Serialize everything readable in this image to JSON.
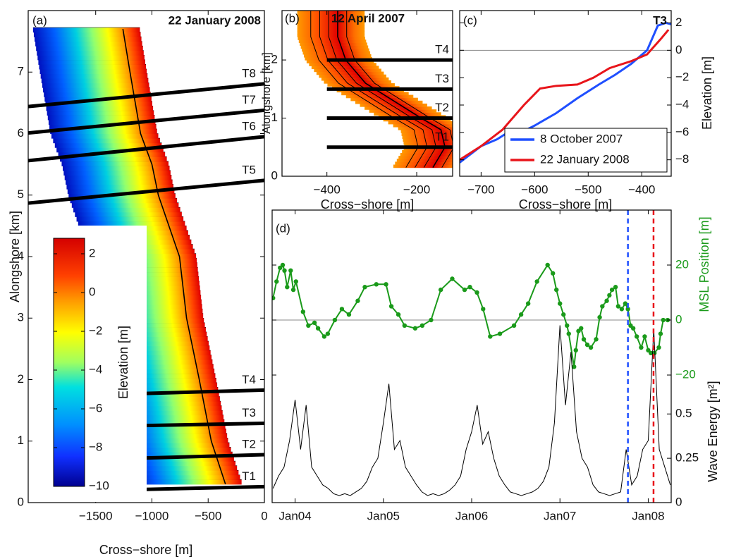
{
  "chart_data": [
    {
      "type": "surface",
      "label": "(a)",
      "title": "22 January 2008",
      "xlabel": "Cross−shore [m]",
      "ylabel": "Alongshore [km]",
      "xlim": [
        -2100,
        0
      ],
      "xticks": [
        {
          "value": -1500,
          "label": "−1500"
        },
        {
          "value": -1000,
          "label": "−1000"
        },
        {
          "value": -500,
          "label": "−500"
        },
        0
      ],
      "ylim": [
        0,
        8
      ],
      "yticks": [
        0,
        1,
        2,
        3,
        4,
        5,
        6,
        7
      ],
      "shoreline": {
        "x": [
          -346,
          -472,
          -579,
          -692,
          -755,
          -943,
          -1000,
          -1101,
          -1195,
          -1258
        ],
        "y": [
          0.3,
          1,
          2,
          3,
          4,
          5,
          5.5,
          6,
          7,
          7.7
        ]
      },
      "transects": [
        {
          "label": "T8",
          "x": [
            -2100,
            0
          ],
          "y": [
            6.44,
            6.81
          ]
        },
        {
          "label": "T7",
          "x": [
            -2100,
            0
          ],
          "y": [
            6.01,
            6.38
          ]
        },
        {
          "label": "T6",
          "x": [
            -2100,
            0
          ],
          "y": [
            5.56,
            5.95
          ]
        },
        {
          "label": "T5",
          "x": [
            -2100,
            0
          ],
          "y": [
            4.87,
            5.24
          ]
        },
        {
          "label": "T4",
          "x": [
            -1164,
            0
          ],
          "y": [
            1.77,
            1.83
          ]
        },
        {
          "label": "T3",
          "x": [
            -1164,
            0
          ],
          "y": [
            1.25,
            1.29
          ]
        },
        {
          "label": "T2",
          "x": [
            -1164,
            0
          ],
          "y": [
            0.72,
            0.78
          ]
        },
        {
          "label": "T1",
          "x": [
            -1164,
            0
          ],
          "y": [
            0.21,
            0.26
          ]
        }
      ],
      "colorbar": {
        "label": "Elevation [m]",
        "clim": [
          -10,
          2.8
        ],
        "ticks": [
          2,
          0,
          {
            "value": -2,
            "label": "−2"
          },
          {
            "value": -4,
            "label": "−4"
          },
          {
            "value": -6,
            "label": "−6"
          },
          {
            "value": -8,
            "label": "−8"
          },
          {
            "value": -10,
            "label": "−10"
          }
        ]
      }
    },
    {
      "type": "surface",
      "label": "(b)",
      "title": "12 April 2007",
      "xlabel": "Cross−shore [m]",
      "ylabel": "Alongshore [km]",
      "xlim": [
        -500,
        -120
      ],
      "xticks": [
        {
          "value": -400,
          "label": "−400"
        },
        {
          "value": -200,
          "label": "−200"
        }
      ],
      "ylim": [
        0,
        2.85
      ],
      "yticks": [
        0,
        1,
        2
      ],
      "shoreline": {
        "x": [
          -164,
          -137,
          -146,
          -190,
          -252,
          -314,
          -358,
          -376,
          -376
        ],
        "y": [
          0.15,
          0.5,
          0.8,
          1.0,
          1.3,
          1.6,
          2.0,
          2.4,
          2.85
        ]
      },
      "transects": [
        {
          "label": "T4",
          "x": [
            -400,
            -120
          ],
          "y": [
            2,
            2
          ]
        },
        {
          "label": "T3",
          "x": [
            -400,
            -120
          ],
          "y": [
            1.5,
            1.5
          ]
        },
        {
          "label": "T2",
          "x": [
            -400,
            -120
          ],
          "y": [
            1,
            1
          ]
        },
        {
          "label": "T1",
          "x": [
            -400,
            -120
          ],
          "y": [
            0.5,
            0.5
          ]
        }
      ]
    },
    {
      "type": "line",
      "label": "(c)",
      "title": "T3",
      "xlabel": "Cross−shore [m]",
      "ylabel": "Elevation [m]",
      "xlim": [
        -740,
        -345
      ],
      "xticks": [
        {
          "value": -700,
          "label": "−700"
        },
        {
          "value": -600,
          "label": "−600"
        },
        {
          "value": -500,
          "label": "−500"
        },
        {
          "value": -400,
          "label": "−400"
        }
      ],
      "ylim": [
        -9.2,
        2.9
      ],
      "yticks": [
        2,
        0,
        {
          "value": -2,
          "label": "−2"
        },
        {
          "value": -4,
          "label": "−4"
        },
        {
          "value": -6,
          "label": "−6"
        },
        {
          "value": -8,
          "label": "−8"
        }
      ],
      "zero_line": true,
      "legend": "lower right",
      "series": [
        {
          "name": "8 October 2007",
          "color": "#1f4fff",
          "x": [
            -740,
            -700,
            -670,
            -650,
            -640,
            -600,
            -560,
            -520,
            -480,
            -450,
            -420,
            -390,
            -370,
            -355,
            -345
          ],
          "values": [
            -8.2,
            -7,
            -6.5,
            -6,
            -6.3,
            -5.5,
            -4.6,
            -3.5,
            -2.5,
            -1.8,
            -1,
            0,
            1.8,
            2,
            1.9
          ]
        },
        {
          "name": "22 January 2008",
          "color": "#e8151b",
          "x": [
            -740,
            -700,
            -660,
            -620,
            -590,
            -560,
            -520,
            -490,
            -460,
            -420,
            -390,
            -365,
            -350
          ],
          "values": [
            -8,
            -7,
            -5.8,
            -4,
            -2.8,
            -2.6,
            -2.5,
            -2,
            -1.3,
            -0.8,
            -0.3,
            0.8,
            1.5
          ]
        }
      ]
    },
    {
      "type": "line",
      "label": "(d)",
      "xlim": [
        2003.74,
        2008.26
      ],
      "xticks": [
        {
          "value": 2004,
          "label": "Jan04"
        },
        {
          "value": 2005,
          "label": "Jan05"
        },
        {
          "value": 2006,
          "label": "Jan06"
        },
        {
          "value": 2007,
          "label": "Jan07"
        },
        {
          "value": 2008,
          "label": "Jan08"
        }
      ],
      "ylabel": "MSL Position [m]",
      "ylim": [
        -66.4,
        40
      ],
      "yticks": [
        {
          "value": -20,
          "label": "−20"
        },
        0,
        20
      ],
      "y2label": "Wave Energy [m²]",
      "y2lim": [
        0,
        1.65
      ],
      "y2ticks": [
        0,
        0.25,
        0.5
      ],
      "zero_line": true,
      "vlines": [
        {
          "x": 2007.77,
          "color": "#1f4fff"
        },
        {
          "x": 2008.06,
          "color": "#e8151b"
        }
      ],
      "series": [
        {
          "color": "#1a9a1a",
          "marker": true,
          "x": [
            2003.75,
            2003.79,
            2003.83,
            2003.86,
            2003.88,
            2003.91,
            2003.95,
            2003.98,
            2004.01,
            2004.09,
            2004.15,
            2004.22,
            2004.26,
            2004.33,
            2004.37,
            2004.45,
            2004.53,
            2004.61,
            2004.71,
            2004.79,
            2004.92,
            2005.03,
            2005.09,
            2005.17,
            2005.24,
            2005.36,
            2005.44,
            2005.54,
            2005.65,
            2005.78,
            2005.92,
            2005.98,
            2006.06,
            2006.13,
            2006.21,
            2006.32,
            2006.48,
            2006.56,
            2006.64,
            2006.74,
            2006.86,
            2006.92,
            2006.96,
            2007.0,
            2007.04,
            2007.08,
            2007.1,
            2007.16,
            2007.18,
            2007.21,
            2007.24,
            2007.27,
            2007.31,
            2007.35,
            2007.41,
            2007.45,
            2007.48,
            2007.53,
            2007.56,
            2007.59,
            2007.63,
            2007.66,
            2007.7,
            2007.74,
            2007.77,
            2007.8,
            2007.83,
            2007.87,
            2007.92,
            2007.96,
            2008.0,
            2008.03,
            2008.07,
            2008.12,
            2008.14,
            2008.17,
            2008.22
          ],
          "values": [
            8,
            14,
            19,
            20,
            18,
            12,
            18,
            11,
            14,
            3,
            -2,
            -1,
            -3,
            -6,
            -5,
            0,
            4,
            2,
            7,
            12,
            13,
            13,
            5,
            2,
            -2,
            -3,
            -2,
            0,
            11,
            15,
            11,
            12,
            10,
            4,
            -6,
            -5,
            -2,
            2,
            6,
            14,
            20,
            17,
            11,
            6,
            2,
            -2,
            -5,
            -17,
            -11,
            -4,
            -3,
            -7,
            -9,
            -10,
            -7,
            1,
            5,
            7,
            9,
            11,
            12,
            5,
            4,
            6,
            4,
            -2,
            -3,
            -6,
            -10,
            -6,
            -11,
            -12,
            -12,
            -10,
            -5,
            0,
            0
          ]
        },
        {
          "color": "#000000",
          "axis": "y2",
          "x": [
            2003.75,
            2003.8125,
            2003.875,
            2003.9375,
            2004,
            2004.0625,
            2004.125,
            2004.1875,
            2004.25,
            2004.3125,
            2004.375,
            2004.4375,
            2004.5,
            2004.5625,
            2004.625,
            2004.6875,
            2004.75,
            2004.8125,
            2004.875,
            2004.9375,
            2005,
            2005.0625,
            2005.125,
            2005.1875,
            2005.25,
            2005.3125,
            2005.375,
            2005.4375,
            2005.5,
            2005.5625,
            2005.625,
            2005.6875,
            2005.75,
            2005.8125,
            2005.875,
            2005.9375,
            2006,
            2006.0625,
            2006.125,
            2006.1875,
            2006.25,
            2006.3125,
            2006.375,
            2006.4375,
            2006.5,
            2006.5625,
            2006.625,
            2006.6875,
            2006.75,
            2006.8125,
            2006.875,
            2006.9375,
            2007,
            2007.0625,
            2007.125,
            2007.1875,
            2007.25,
            2007.3125,
            2007.375,
            2007.4375,
            2007.5,
            2007.5625,
            2007.625,
            2007.6875,
            2007.75,
            2007.8125,
            2007.875,
            2007.9375,
            2008,
            2008.0625,
            2008.125,
            2008.1875,
            2008.25
          ],
          "values": [
            0.08,
            0.15,
            0.2,
            0.35,
            0.58,
            0.3,
            0.55,
            0.2,
            0.15,
            0.1,
            0.08,
            0.05,
            0.04,
            0.05,
            0.04,
            0.06,
            0.08,
            0.12,
            0.2,
            0.25,
            0.45,
            0.67,
            0.3,
            0.35,
            0.2,
            0.15,
            0.1,
            0.06,
            0.04,
            0.05,
            0.04,
            0.05,
            0.07,
            0.1,
            0.15,
            0.3,
            0.4,
            0.55,
            0.33,
            0.4,
            0.25,
            0.15,
            0.1,
            0.06,
            0.05,
            0.04,
            0.05,
            0.06,
            0.08,
            0.12,
            0.2,
            0.45,
            1.0,
            0.55,
            0.85,
            0.4,
            0.25,
            0.2,
            0.1,
            0.06,
            0.05,
            0.04,
            0.05,
            0.06,
            0.3,
            0.1,
            0.15,
            0.3,
            0.35,
            0.98,
            0.3,
            0.2,
            0.1
          ]
        }
      ]
    }
  ]
}
